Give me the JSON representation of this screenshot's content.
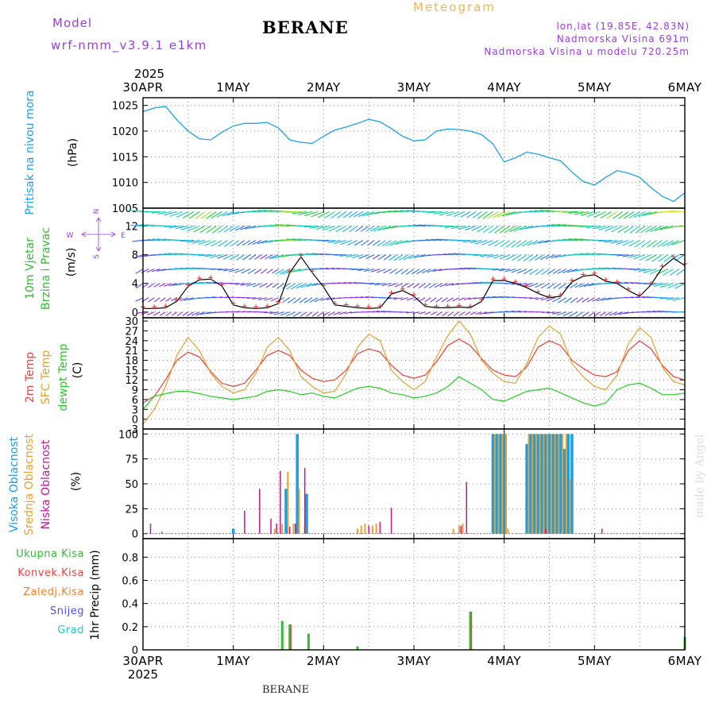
{
  "header": {
    "model_label": "Model",
    "model_name": "wrf-nmm_v3.9.1 e1km",
    "station": "BERANE",
    "product": "Meteogram",
    "lonlat": "lon,lat (19.85E, 42.83N)",
    "elevation": "Nadmorska Visina 691m",
    "model_elevation": "Nadmorska Visina u modelu 720.25m",
    "watermark": "made by Angel",
    "footer": "BERANE"
  },
  "colors": {
    "pressure": "#1aa0e8",
    "t2m": "#e8403a",
    "sfc": "#e0a030",
    "dewpt": "#22cc22",
    "cloud_high": "#1a9ee6",
    "cloud_mid": "#e8a030",
    "cloud_low": "#c01890",
    "rain_total": "#33bb33",
    "rain_conv": "#e84040",
    "rain_frozen": "#f08030",
    "snow": "#5050e0",
    "hail": "#30c0c0",
    "wind_speed": "#000000",
    "wind_marker": "#dd3030",
    "model_text": "#9a3ed6",
    "product_text": "#e8b860"
  },
  "chart_data": [
    {
      "type": "line",
      "id": "pressure",
      "ylabel": [
        "Pritisak na nivou mora",
        "(hPa)"
      ],
      "unit": "(hPa)",
      "ylim": [
        1005,
        1026.5
      ],
      "yticks": [
        "1005",
        "1010",
        "1015",
        "1020",
        "1025"
      ],
      "grid": true,
      "x_hours": [
        0,
        3,
        6,
        9,
        12,
        15,
        18,
        21,
        24,
        27,
        30,
        33,
        36,
        39,
        42,
        45,
        48,
        51,
        54,
        57,
        60,
        63,
        66,
        69,
        72,
        75,
        78,
        81,
        84,
        87,
        90,
        93,
        96,
        99,
        102,
        105,
        108,
        111,
        114,
        117,
        120,
        123,
        126,
        129,
        132,
        135,
        138,
        141,
        144
      ],
      "values": [
        1023.8,
        1024.5,
        1024.8,
        1022.2,
        1020.0,
        1018.5,
        1018.3,
        1019.8,
        1021.0,
        1021.5,
        1021.5,
        1021.7,
        1020.6,
        1018.3,
        1017.8,
        1017.6,
        1019.0,
        1020.2,
        1020.8,
        1021.5,
        1022.3,
        1021.8,
        1020.5,
        1019.0,
        1018.1,
        1018.3,
        1020.0,
        1020.4,
        1020.3,
        1020.0,
        1019.3,
        1017.5,
        1014.0,
        1014.8,
        1015.9,
        1015.5,
        1014.8,
        1014.2,
        1012.0,
        1010.2,
        1009.5,
        1011.0,
        1012.3,
        1011.8,
        1011.0,
        1009.0,
        1007.3,
        1006.3,
        1008.0
      ]
    },
    {
      "type": "line",
      "id": "wind",
      "ylabel": [
        "10m Vjetar",
        "Brzina i Pravac"
      ],
      "unit": "(m/s)",
      "compass": [
        "N",
        "E",
        "S",
        "W"
      ],
      "ylim": [
        -0.8,
        14.5
      ],
      "yticks": [
        "0",
        "4",
        "8",
        "12"
      ],
      "grid": true,
      "x_hours": [
        0,
        3,
        6,
        9,
        12,
        15,
        18,
        21,
        24,
        27,
        30,
        33,
        36,
        39,
        42,
        45,
        48,
        51,
        54,
        57,
        60,
        63,
        66,
        69,
        72,
        75,
        78,
        81,
        84,
        87,
        90,
        93,
        96,
        99,
        102,
        105,
        108,
        111,
        114,
        117,
        120,
        123,
        126,
        129,
        132,
        135,
        138,
        141,
        144
      ],
      "values": [
        0.5,
        0.5,
        0.6,
        1.5,
        3.6,
        4.5,
        4.6,
        3.6,
        1.0,
        0.6,
        0.5,
        0.6,
        1.2,
        5.5,
        7.7,
        5.5,
        3.5,
        1.0,
        0.8,
        0.6,
        0.5,
        0.6,
        2.5,
        3.0,
        2.2,
        0.8,
        0.6,
        0.6,
        0.7,
        0.6,
        1.5,
        4.4,
        4.4,
        4.0,
        3.4,
        2.6,
        2.0,
        2.2,
        4.2,
        5.0,
        5.2,
        4.3,
        4.0,
        3.0,
        2.2,
        3.8,
        6.2,
        7.5,
        6.5
      ]
    },
    {
      "type": "line",
      "id": "temperature",
      "ylabel": [
        "2m Temp",
        "SFC Temp",
        "dewpt Temp"
      ],
      "unit": "(C)",
      "ylim": [
        -3,
        31
      ],
      "yticks": [
        "-3",
        "0",
        "3",
        "6",
        "9",
        "12",
        "15",
        "18",
        "21",
        "24",
        "27",
        "30"
      ],
      "grid": true,
      "x_hours": [
        0,
        3,
        6,
        9,
        12,
        15,
        18,
        21,
        24,
        27,
        30,
        33,
        36,
        39,
        42,
        45,
        48,
        51,
        54,
        57,
        60,
        63,
        66,
        69,
        72,
        75,
        78,
        81,
        84,
        87,
        90,
        93,
        96,
        99,
        102,
        105,
        108,
        111,
        114,
        117,
        120,
        123,
        126,
        129,
        132,
        135,
        138,
        141,
        144
      ],
      "series": [
        {
          "name": "2m Temp",
          "color_key": "t2m",
          "values": [
            5.0,
            7.0,
            12.0,
            18.0,
            20.5,
            19.0,
            14.5,
            11.0,
            10.0,
            11.0,
            15.0,
            19.5,
            21.0,
            19.5,
            15.0,
            12.5,
            11.5,
            12.0,
            15.0,
            20.0,
            21.5,
            20.5,
            16.5,
            13.5,
            12.5,
            13.5,
            17.5,
            22.5,
            24.5,
            22.5,
            18.5,
            15.0,
            13.5,
            13.0,
            16.0,
            22.0,
            24.0,
            22.5,
            18.0,
            15.5,
            13.5,
            13.0,
            14.5,
            21.0,
            24.0,
            21.5,
            16.5,
            13.0,
            12.0
          ]
        },
        {
          "name": "SFC Temp",
          "color_key": "sfc",
          "values": [
            -1.5,
            3.0,
            10.0,
            19.5,
            25.0,
            21.0,
            14.0,
            10.0,
            8.0,
            9.0,
            14.0,
            22.0,
            25.0,
            21.0,
            13.0,
            10.0,
            8.0,
            8.5,
            14.0,
            22.0,
            26.0,
            24.0,
            15.0,
            11.5,
            9.0,
            11.5,
            19.0,
            25.5,
            30.0,
            26.0,
            18.0,
            14.0,
            11.5,
            11.0,
            17.0,
            25.0,
            28.5,
            26.0,
            17.0,
            13.0,
            10.0,
            9.0,
            13.5,
            23.0,
            28.0,
            25.0,
            16.0,
            11.5,
            10.5
          ]
        },
        {
          "name": "dewpt Temp",
          "color_key": "dewpt",
          "values": [
            3.0,
            7.0,
            7.8,
            8.5,
            8.5,
            7.8,
            7.0,
            6.5,
            6.0,
            6.5,
            7.0,
            8.5,
            9.0,
            8.5,
            7.5,
            8.0,
            7.0,
            6.5,
            8.0,
            9.5,
            10.0,
            9.5,
            8.0,
            7.5,
            6.5,
            7.0,
            8.0,
            10.0,
            13.0,
            11.0,
            9.0,
            6.0,
            5.5,
            7.0,
            8.5,
            9.0,
            9.5,
            8.0,
            6.5,
            5.0,
            4.0,
            5.0,
            9.0,
            10.5,
            11.0,
            9.5,
            7.5,
            7.5,
            8.0
          ]
        }
      ]
    },
    {
      "type": "bar",
      "id": "clouds",
      "ylabel": [
        "Visoka Oblacnost",
        "Srednja Oblacnost",
        "Niska Oblacnost"
      ],
      "unit": "(%)",
      "ylim": [
        -5,
        105
      ],
      "yticks": [
        "0",
        "25",
        "50",
        "75",
        "100"
      ],
      "grid": true,
      "series": [
        {
          "name": "Visoka Oblacnost",
          "color_key": "cloud_high",
          "points": [
            [
              24,
              5
            ],
            [
              38,
              45
            ],
            [
              41,
              100
            ],
            [
              43.5,
              40
            ],
            [
              93,
              100
            ],
            [
              94,
              100
            ],
            [
              95,
              100
            ],
            [
              96,
              100
            ],
            [
              102,
              90
            ],
            [
              103,
              100
            ],
            [
              104,
              100
            ],
            [
              105,
              100
            ],
            [
              106,
              100
            ],
            [
              107,
              100
            ],
            [
              108,
              100
            ],
            [
              109,
              100
            ],
            [
              110,
              100
            ],
            [
              111,
              100
            ],
            [
              112,
              85
            ],
            [
              113,
              100
            ],
            [
              114,
              100
            ]
          ]
        },
        {
          "name": "Srednja Oblacnost",
          "color_key": "cloud_mid",
          "points": [
            [
              35,
              5
            ],
            [
              37,
              10
            ],
            [
              38.5,
              62
            ],
            [
              40,
              10
            ],
            [
              41.5,
              45
            ],
            [
              43,
              8
            ],
            [
              57,
              5
            ],
            [
              58,
              8
            ],
            [
              59,
              10
            ],
            [
              61,
              8
            ],
            [
              62,
              10
            ],
            [
              82.5,
              5
            ],
            [
              84,
              8
            ],
            [
              85,
              10
            ],
            [
              93.5,
              100
            ],
            [
              94.5,
              100
            ],
            [
              95.5,
              100
            ],
            [
              96.5,
              100
            ],
            [
              97,
              5
            ],
            [
              102.5,
              100
            ],
            [
              103.5,
              100
            ],
            [
              104.5,
              100
            ],
            [
              105.5,
              100
            ],
            [
              106.5,
              100
            ],
            [
              107.5,
              100
            ],
            [
              108.5,
              100
            ],
            [
              109.5,
              100
            ],
            [
              110.5,
              100
            ],
            [
              111.5,
              100
            ],
            [
              112.5,
              100
            ],
            [
              113.5,
              55
            ]
          ]
        },
        {
          "name": "Niska Oblacnost",
          "color_key": "cloud_low",
          "points": [
            [
              2,
              10
            ],
            [
              5,
              2
            ],
            [
              27,
              23
            ],
            [
              31,
              45
            ],
            [
              34,
              15
            ],
            [
              35.5,
              10
            ],
            [
              36.5,
              63
            ],
            [
              39,
              7
            ],
            [
              40.5,
              10
            ],
            [
              43,
              66
            ],
            [
              60,
              8
            ],
            [
              63,
              12
            ],
            [
              66,
              26
            ],
            [
              84.5,
              8
            ],
            [
              86,
              52
            ],
            [
              107,
              5
            ],
            [
              122,
              5
            ]
          ]
        }
      ]
    },
    {
      "type": "bar",
      "id": "precip",
      "ylabel": [
        "1hr Precip (mm)"
      ],
      "unit": "(mm)",
      "legend": [
        "Ukupna Kisa",
        "Konvek.Kisa",
        "Zaledj.Kisa",
        "Snijeg",
        "Grad"
      ],
      "ylim": [
        0,
        0.96
      ],
      "yticks": [
        "0",
        "0.2",
        "0.4",
        "0.6",
        "0.8"
      ],
      "grid": true,
      "series": [
        {
          "name": "Ukupna Kisa",
          "color_key": "rain_total",
          "points": [
            [
              37,
              0.25
            ],
            [
              39,
              0.22
            ],
            [
              44,
              0.14
            ],
            [
              57,
              0.03
            ],
            [
              87,
              0.33
            ],
            [
              144,
              0.11
            ]
          ]
        },
        {
          "name": "Konvek.Kisa",
          "color_key": "rain_conv",
          "points": [
            [
              39.3,
              0.22
            ],
            [
              87.3,
              0.33
            ]
          ]
        }
      ]
    }
  ],
  "x_axis": {
    "start_year": "2025",
    "hours_span": 144,
    "ticks": [
      {
        "hour": 0,
        "label": "30APR"
      },
      {
        "hour": 24,
        "label": "1MAY"
      },
      {
        "hour": 48,
        "label": "2MAY"
      },
      {
        "hour": 72,
        "label": "3MAY"
      },
      {
        "hour": 96,
        "label": "4MAY"
      },
      {
        "hour": 120,
        "label": "5MAY"
      },
      {
        "hour": 144,
        "label": "6MAY"
      }
    ]
  }
}
